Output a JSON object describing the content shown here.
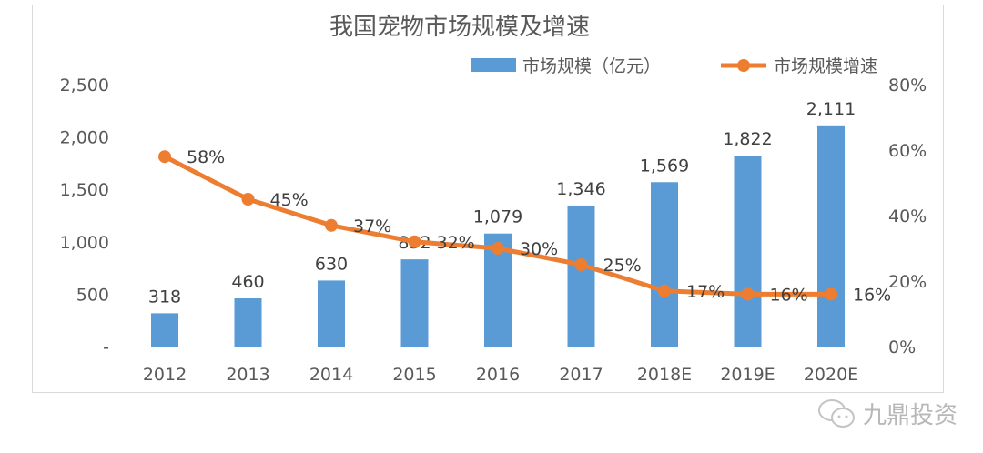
{
  "chart_data": {
    "type": "bar+line",
    "title": "我国宠物市场规模及增速",
    "categories": [
      "2012",
      "2013",
      "2014",
      "2015",
      "2016",
      "2017",
      "2018E",
      "2019E",
      "2020E"
    ],
    "series": [
      {
        "name": "市场规模（亿元）",
        "type": "bar",
        "axis": "left",
        "values": [
          318,
          460,
          630,
          832,
          1079,
          1346,
          1569,
          1822,
          2111
        ],
        "labels": [
          "318",
          "460",
          "630",
          "832",
          "1,079",
          "1,346",
          "1,569",
          "1,822",
          "2,111"
        ],
        "color": "#5B9BD5"
      },
      {
        "name": "市场规模增速",
        "type": "line",
        "axis": "right",
        "values": [
          58,
          45,
          37,
          32,
          30,
          25,
          17,
          16,
          16
        ],
        "labels": [
          "58%",
          "45%",
          "37%",
          "32%",
          "30%",
          "25%",
          "17%",
          "16%",
          "16%"
        ],
        "color": "#ED7D31"
      }
    ],
    "left_axis": {
      "ylim": [
        0,
        2500
      ],
      "ticks": [
        "-",
        "500",
        "1,000",
        "1,500",
        "2,000",
        "2,500"
      ]
    },
    "right_axis": {
      "ylim": [
        0,
        80
      ],
      "ticks": [
        "0%",
        "20%",
        "40%",
        "60%",
        "80%"
      ]
    },
    "grid": false,
    "legend_placement": "top-right"
  },
  "watermark": {
    "text": "九鼎投资",
    "icon": "wechat-icon"
  }
}
